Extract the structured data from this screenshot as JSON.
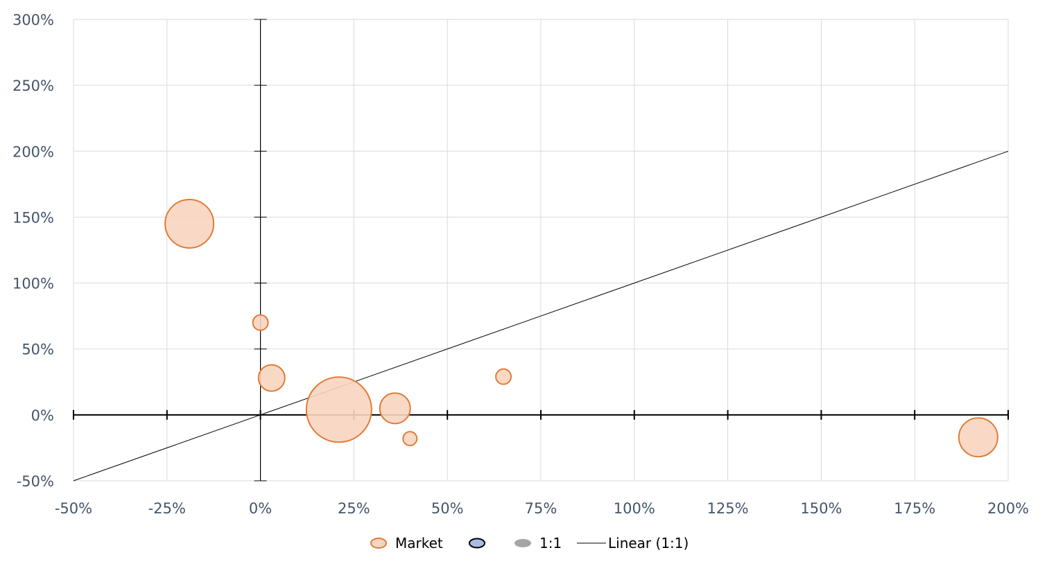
{
  "chart_data": {
    "type": "scatter",
    "subtype": "bubble",
    "title": "",
    "xlabel": "",
    "ylabel": "",
    "xlim": [
      -50,
      200
    ],
    "ylim": [
      -50,
      300
    ],
    "x_ticks": [
      "-50%",
      "-25%",
      "0%",
      "25%",
      "50%",
      "75%",
      "100%",
      "125%",
      "150%",
      "175%",
      "200%"
    ],
    "y_ticks": [
      "300%",
      "250%",
      "200%",
      "150%",
      "100%",
      "50%",
      "0%",
      "-50%"
    ],
    "grid": true,
    "legend_position": "bottom",
    "series": [
      {
        "name": "Market",
        "fill": "#f8d5c0",
        "stroke": "#e07c37",
        "points": [
          {
            "x": -19,
            "y": 145,
            "size": 35
          },
          {
            "x": 0,
            "y": 70,
            "size": 11
          },
          {
            "x": 3,
            "y": 28,
            "size": 19
          },
          {
            "x": 21,
            "y": 4,
            "size": 47
          },
          {
            "x": 36,
            "y": 5,
            "size": 22
          },
          {
            "x": 40,
            "y": -18,
            "size": 10
          },
          {
            "x": 65,
            "y": 29,
            "size": 11
          },
          {
            "x": 192,
            "y": -17,
            "size": 28
          }
        ]
      },
      {
        "name": "",
        "fill": "#a9bde3",
        "stroke": "#000000",
        "points": []
      },
      {
        "name": "1:1",
        "fill": "#a5a5a5",
        "stroke": "#a5a5a5",
        "points": []
      },
      {
        "name": "Linear (1:1)",
        "type": "line",
        "color": "#000000",
        "points": [
          {
            "x": -50,
            "y": -50
          },
          {
            "x": 200,
            "y": 200
          }
        ]
      }
    ]
  },
  "legend": {
    "items": [
      {
        "label": "Market"
      },
      {
        "label": ""
      },
      {
        "label": "1:1"
      },
      {
        "label": "Linear (1:1)"
      }
    ]
  }
}
